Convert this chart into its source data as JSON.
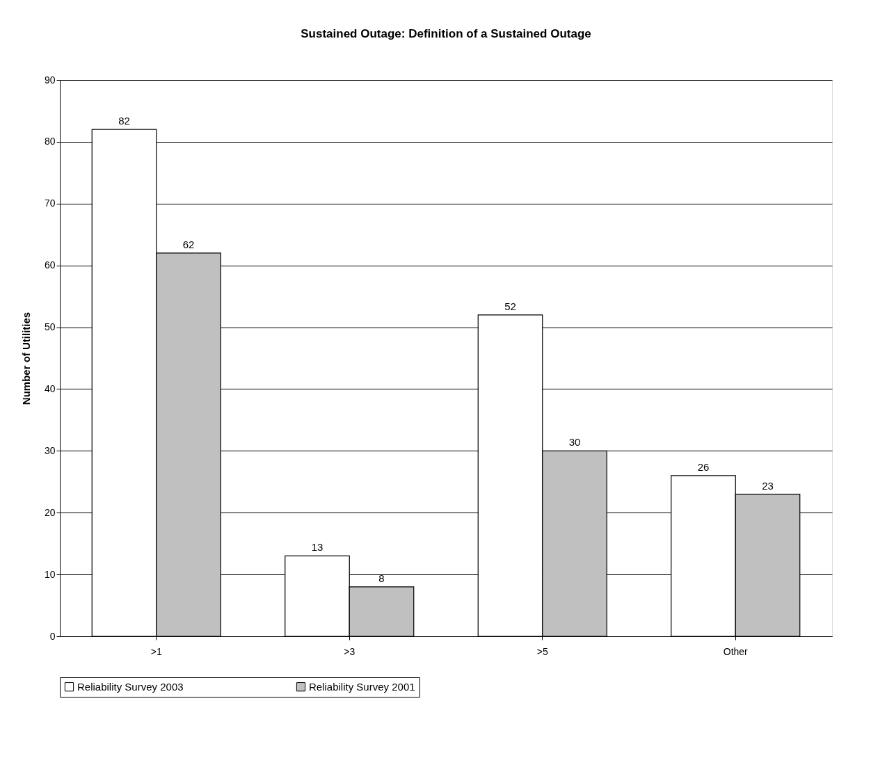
{
  "chart_data": {
    "type": "bar",
    "title": "Sustained Outage: Definition of a Sustained Outage",
    "ylabel": "Number of Utilities",
    "categories": [
      ">1",
      ">3",
      ">5",
      "Other"
    ],
    "series": [
      {
        "name": "Reliability Survey 2003",
        "color": "#ffffff",
        "values": [
          82,
          13,
          52,
          26
        ]
      },
      {
        "name": "Reliability Survey 2001",
        "color": "#c0c0c0",
        "values": [
          62,
          8,
          30,
          23
        ]
      }
    ],
    "ylim": [
      0,
      90
    ],
    "yticks": [
      0,
      10,
      20,
      30,
      40,
      50,
      60,
      70,
      80,
      90
    ],
    "grid": "y",
    "legend": "bottom",
    "data_labels": true
  }
}
